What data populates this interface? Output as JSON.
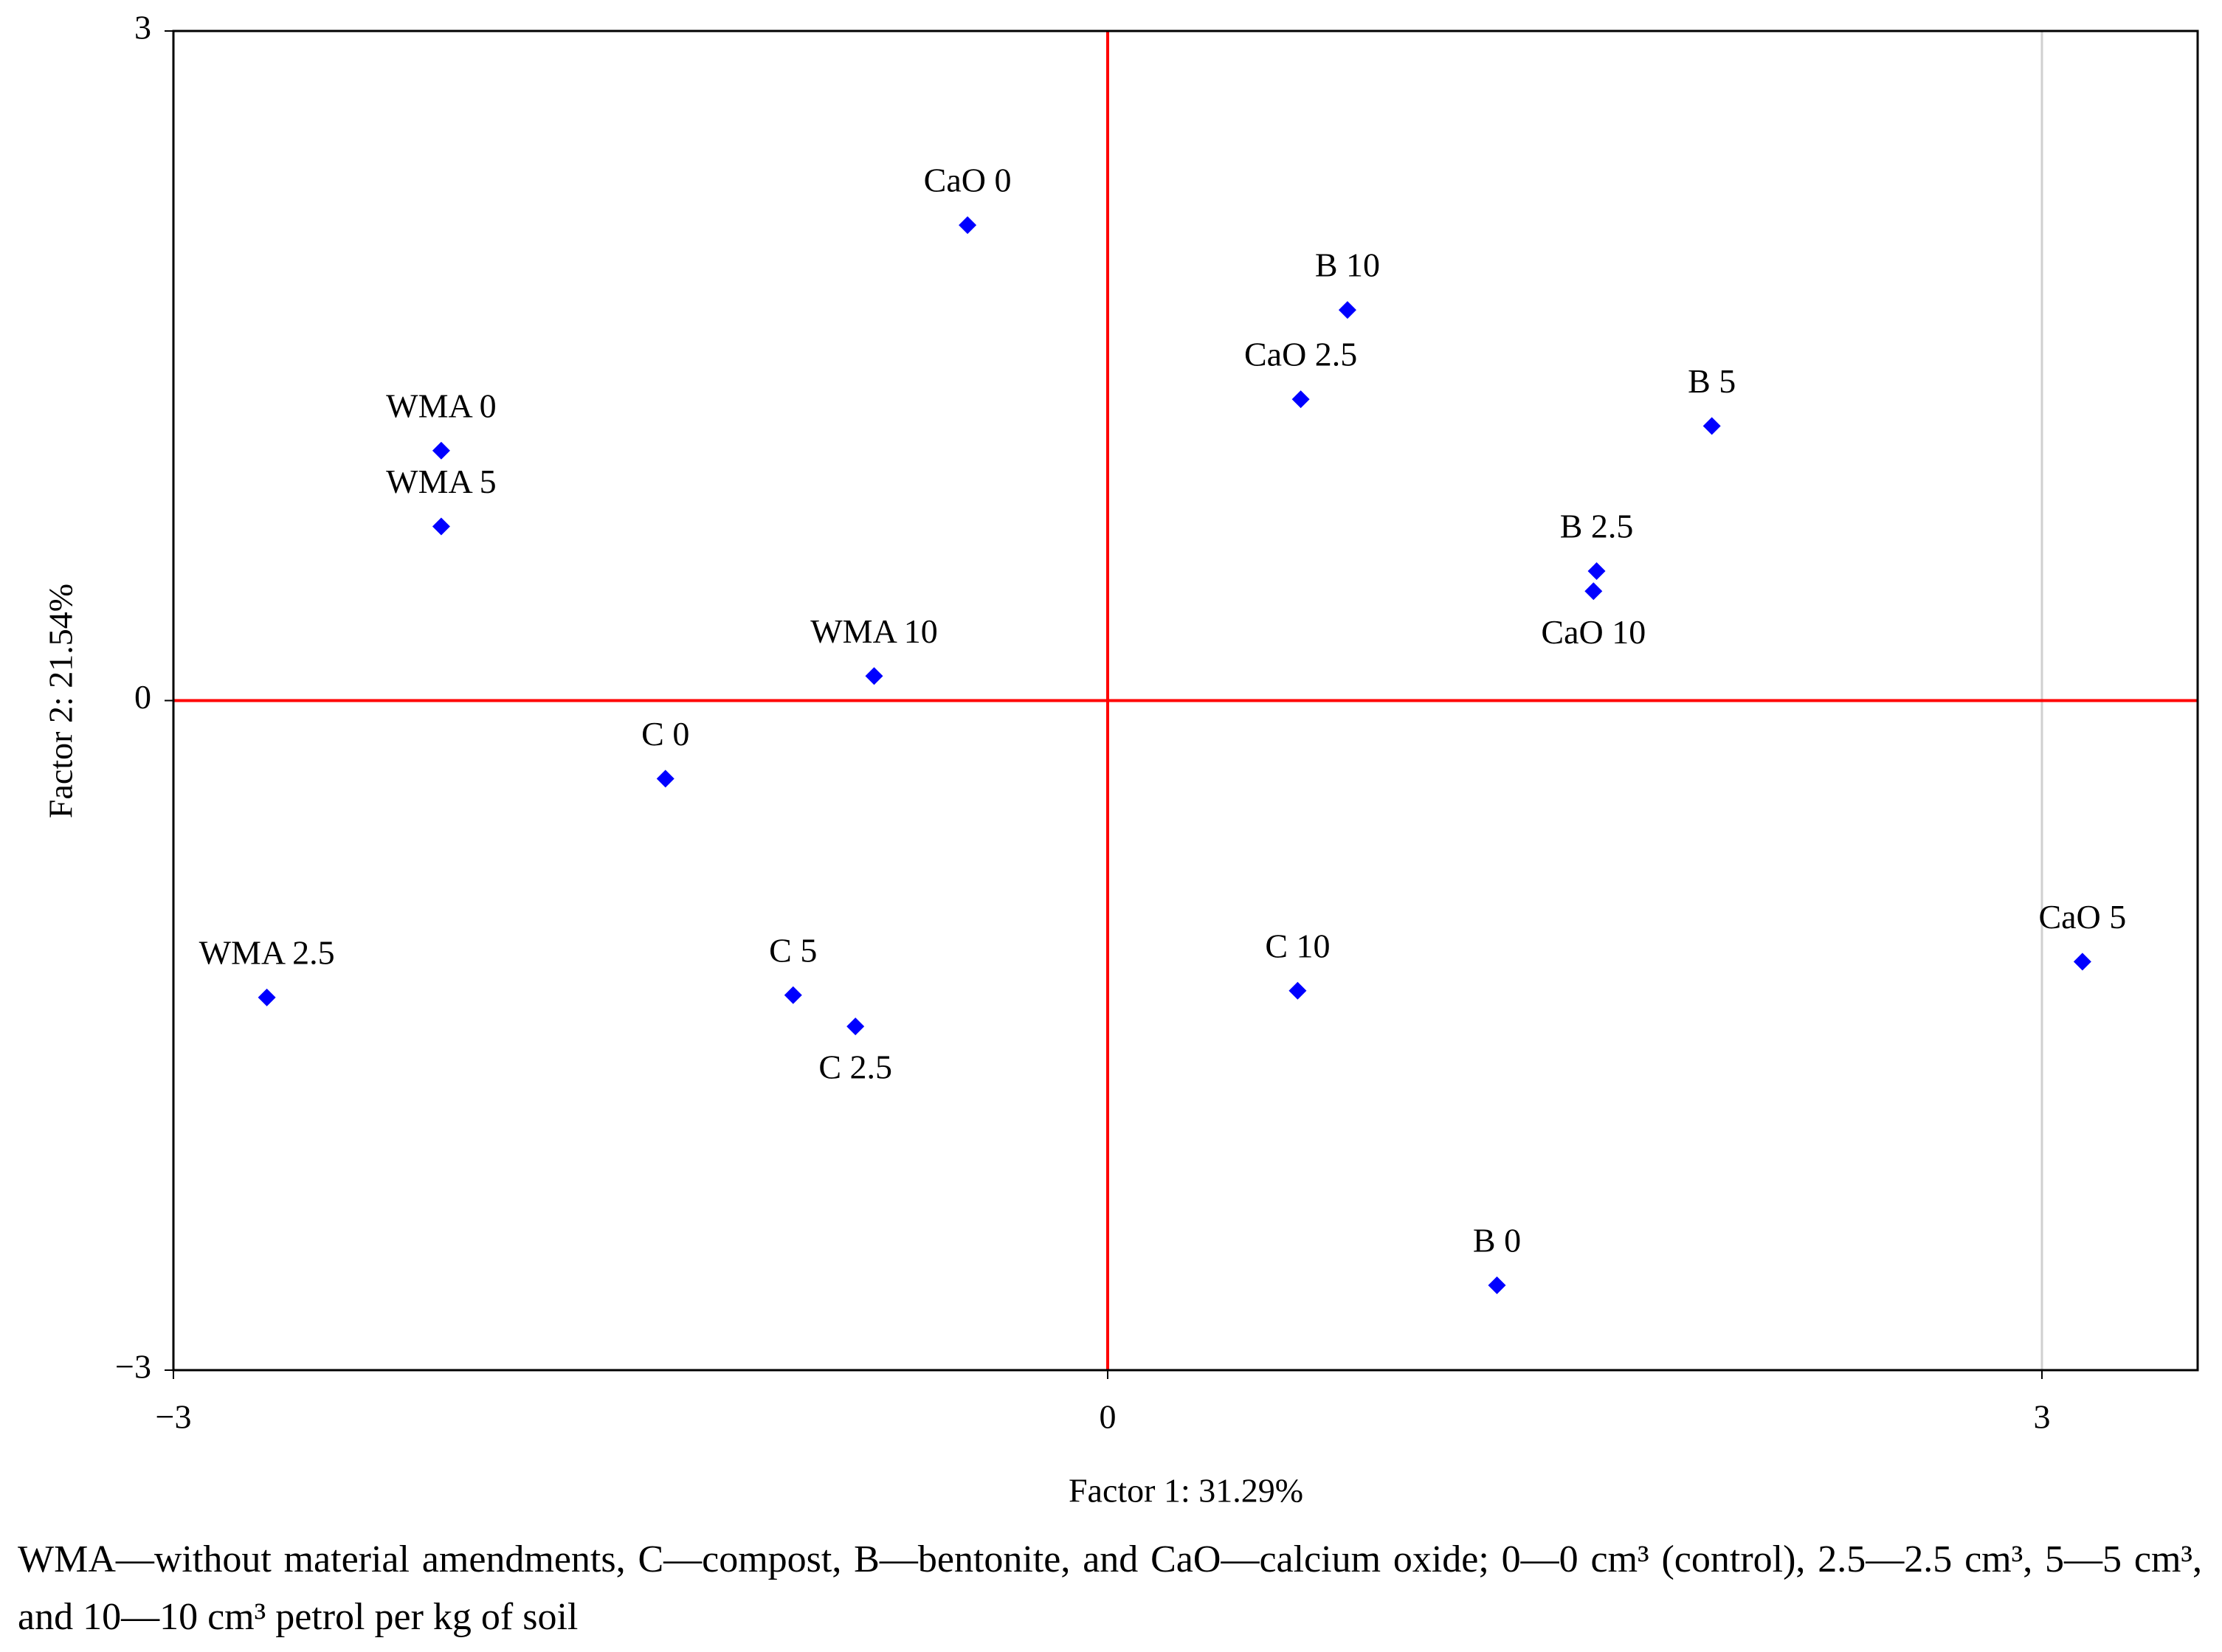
{
  "chart_data": {
    "type": "scatter",
    "x_label": "Factor 1: 31.29%",
    "y_label": "Factor 2: 21.54%",
    "labels": [
      "CaO 0",
      "B 10",
      "CaO 2.5",
      "B 5",
      "WMA 0",
      "WMA 5",
      "B 2.5",
      "CaO 10",
      "WMA 10",
      "C 0",
      "WMA 2.5",
      "C 5",
      "C 2.5",
      "C 10",
      "CaO 5",
      "B 0"
    ],
    "x": [
      -0.45,
      0.77,
      0.62,
      1.94,
      -2.14,
      -2.14,
      1.57,
      1.56,
      -0.75,
      -1.42,
      -2.7,
      -1.01,
      -0.81,
      0.61,
      3.13,
      1.25
    ],
    "y": [
      2.13,
      1.75,
      1.35,
      1.23,
      1.12,
      0.78,
      0.58,
      0.49,
      0.11,
      -0.35,
      -1.33,
      -1.32,
      -1.46,
      -1.3,
      -1.17,
      -2.62
    ],
    "color": "#0000ff",
    "zero_line_color": "#ff0000",
    "grid": true,
    "xlim": [
      -3,
      3.5
    ],
    "ylim": [
      -3,
      3
    ],
    "xticks": [
      {
        "value": -3,
        "label": "−3"
      },
      0,
      3
    ],
    "yticks": [
      {
        "value": -3,
        "label": "−3"
      },
      0,
      3
    ],
    "caption": "WMA—without material amendments, C—compost, B—bentonite, and CaO—calcium oxide; 0—0 cm³ (control), 2.5—2.5 cm³, 5—5 cm³, and 10—10 cm³ petrol per kg of soil"
  }
}
